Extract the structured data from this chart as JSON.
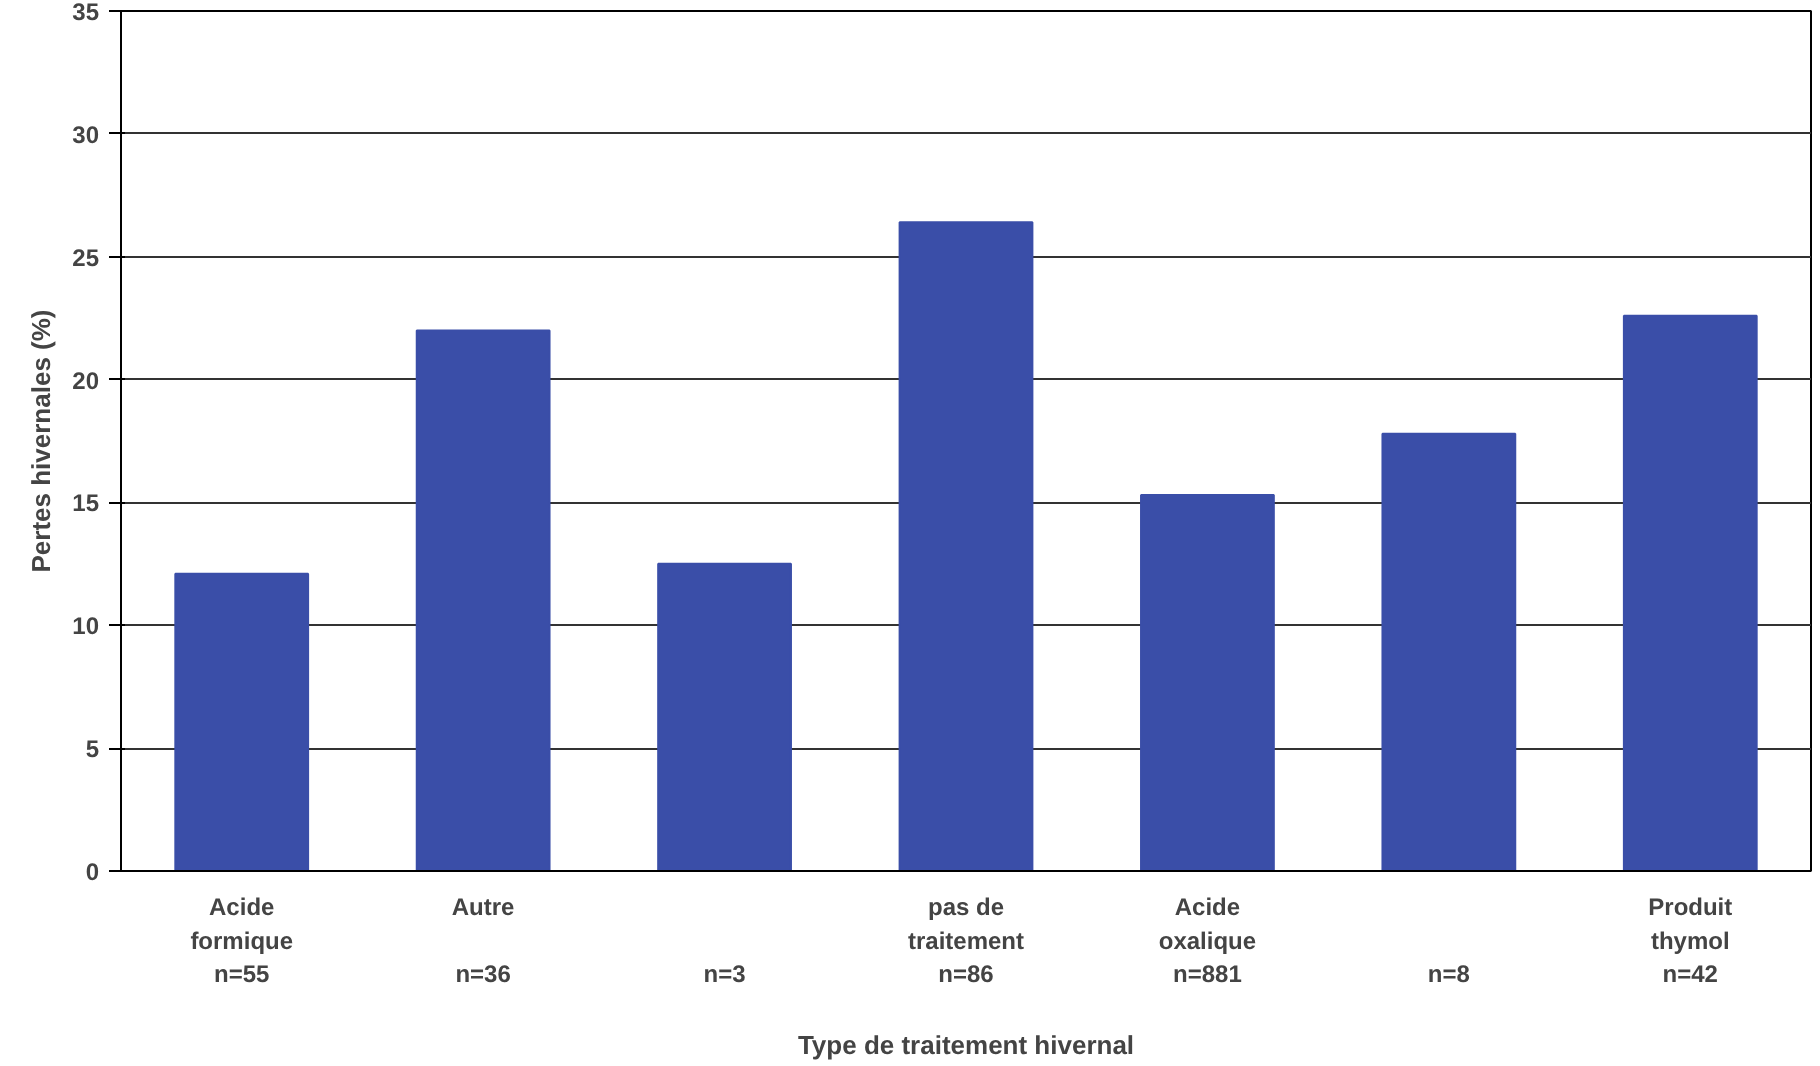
{
  "chart_data": {
    "type": "bar",
    "xlabel": "Type de traitement hivernal",
    "ylabel": "Pertes hivernales (%)",
    "categories": [
      "Acide\nformique\nn=55",
      "Autre\n\nn=36",
      "\n\nn=3",
      "pas de\ntraitement\nn=86",
      "Acide\noxalique\nn=881",
      "\n\nn=8",
      "Produit\nthymol\nn=42"
    ],
    "values": [
      12.1,
      22.0,
      12.5,
      26.4,
      15.3,
      17.8,
      22.6
    ],
    "color": "#3a4ea8",
    "ylim": [
      0,
      35
    ],
    "yticks": [
      0,
      5,
      10,
      15,
      20,
      25,
      30,
      35
    ],
    "grid": "y"
  }
}
